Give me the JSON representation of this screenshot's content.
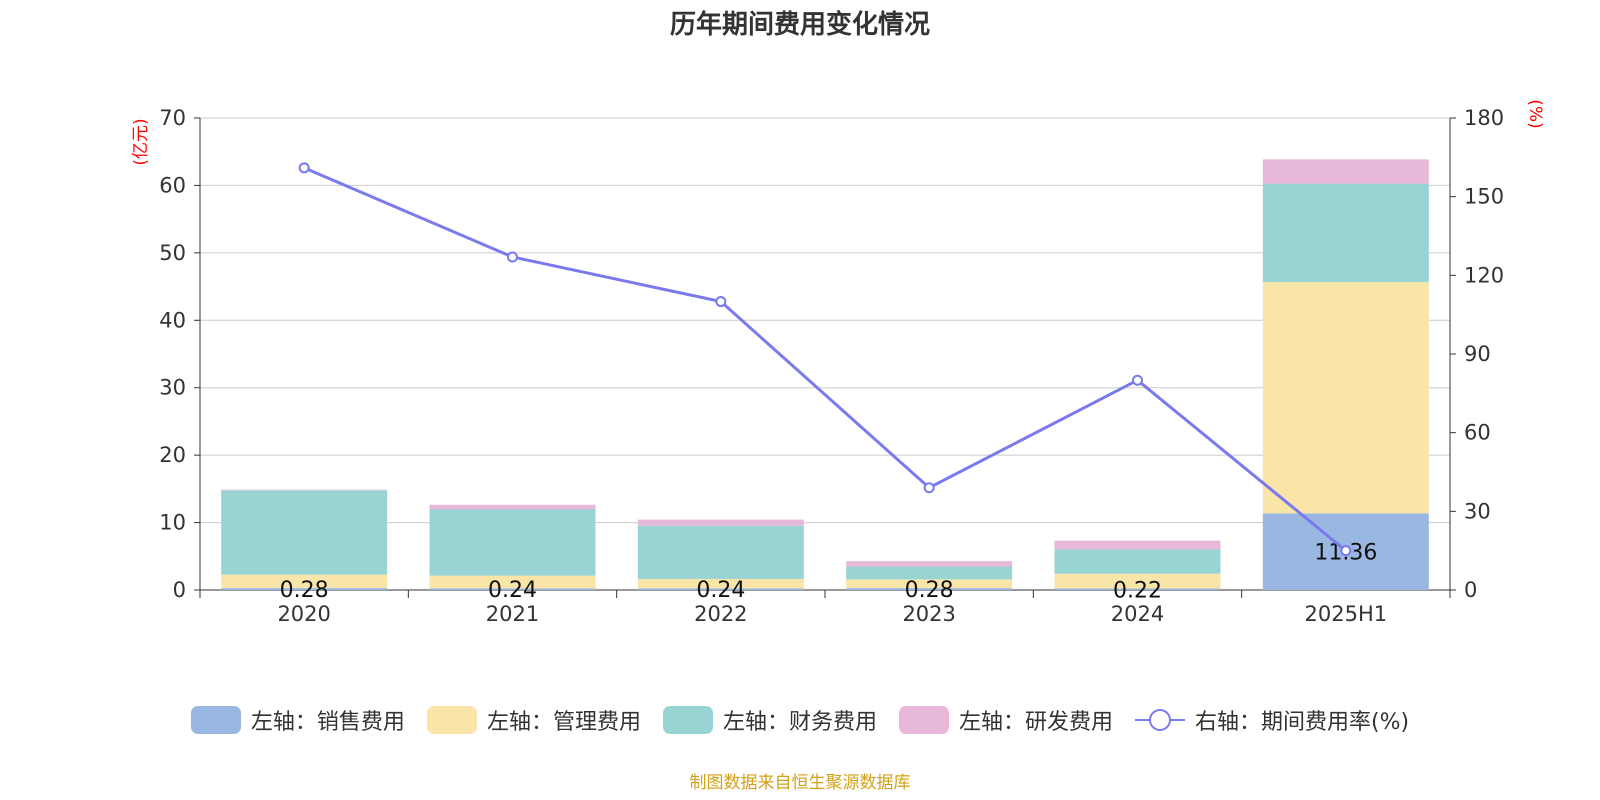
{
  "chart_data": {
    "type": "bar",
    "stacked": true,
    "title": "历年期间费用变化情况",
    "categories": [
      "2020",
      "2021",
      "2022",
      "2023",
      "2024",
      "2025H1"
    ],
    "left_axis": {
      "label": "(亿元)",
      "ylim": [
        0,
        70
      ],
      "ticks": [
        "0",
        "10",
        "20",
        "30",
        "40",
        "50",
        "60",
        "70"
      ]
    },
    "right_axis": {
      "label": "(%)",
      "ylim": [
        0,
        180
      ],
      "ticks": [
        "0",
        "30",
        "60",
        "90",
        "120",
        "150",
        "180"
      ]
    },
    "series": [
      {
        "name": "左轴：销售费用",
        "color": "#9ab7e2",
        "axis": "left",
        "values": [
          0.28,
          0.24,
          0.24,
          0.28,
          0.22,
          11.36
        ],
        "labels": [
          "0.28",
          "0.24",
          "0.24",
          "0.28",
          "0.22",
          "11.36"
        ]
      },
      {
        "name": "左轴：管理费用",
        "color": "#f8e5a7",
        "axis": "left",
        "values": [
          2.0,
          1.9,
          1.4,
          1.3,
          2.2,
          34.3
        ]
      },
      {
        "name": "左轴：财务费用",
        "color": "#98d4d4",
        "axis": "left",
        "values": [
          12.5,
          9.8,
          7.9,
          1.9,
          3.6,
          14.6
        ]
      },
      {
        "name": "左轴：研发费用",
        "color": "#e8b8d8",
        "axis": "left",
        "values": [
          0.1,
          0.7,
          0.9,
          0.8,
          1.3,
          3.6
        ]
      },
      {
        "name": "右轴：期间费用率(%)",
        "color": "#7a7aee",
        "axis": "right",
        "type": "line",
        "values": [
          161.0,
          127.0,
          110.0,
          39.0,
          80.0,
          15.0
        ]
      }
    ],
    "grid": true,
    "legend_position": "bottom"
  },
  "source_note": "制图数据来自恒生聚源数据库",
  "colors": {
    "axis_label": "#ff0000",
    "text": "#333333",
    "grid": "#cccccc",
    "source": "#d4a017"
  }
}
